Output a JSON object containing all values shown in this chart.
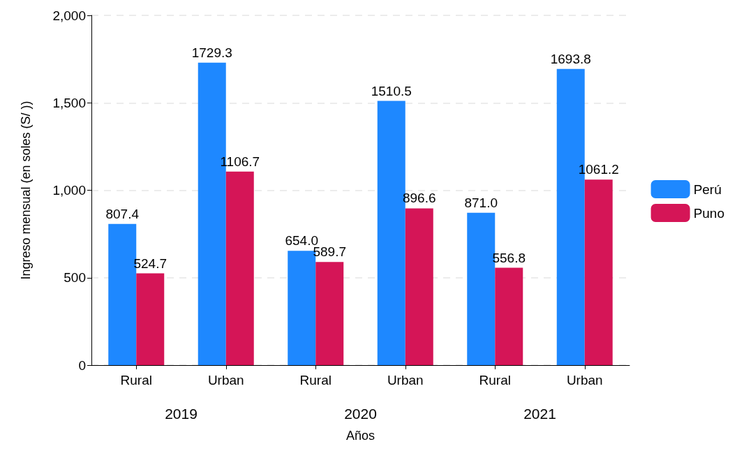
{
  "chart_data": {
    "type": "bar",
    "xlabel": "Años",
    "ylabel": "Ingreso mensual (en soles (S/ ))",
    "categories": [
      "Rural",
      "Urban",
      "Rural",
      "Urban",
      "Rural",
      "Urban"
    ],
    "annotations": [
      "2019",
      "2020",
      "2021"
    ],
    "series": [
      {
        "name": "Perú",
        "color": "#1e88ff",
        "values": [
          807.4,
          1729.3,
          654.0,
          1510.5,
          871.0,
          1693.8
        ],
        "value_labels": [
          "807.4",
          "1729.3",
          "654.0",
          "1510.5",
          "871.0",
          "1693.8"
        ]
      },
      {
        "name": "Puno",
        "color": "#d51557",
        "values": [
          524.7,
          1106.7,
          589.7,
          896.6,
          556.8,
          1061.2
        ],
        "value_labels": [
          "524.7",
          "1106.7",
          "589.7",
          "896.6",
          "556.8",
          "1061.2"
        ]
      }
    ],
    "ylim": [
      0,
      2000
    ],
    "yticks": [
      0,
      500,
      {
        "value": 1000,
        "label": "1,000"
      },
      {
        "value": 1500,
        "label": "1,500"
      },
      {
        "value": 2000,
        "label": "2,000"
      }
    ],
    "grid": "y",
    "legend": "right"
  }
}
